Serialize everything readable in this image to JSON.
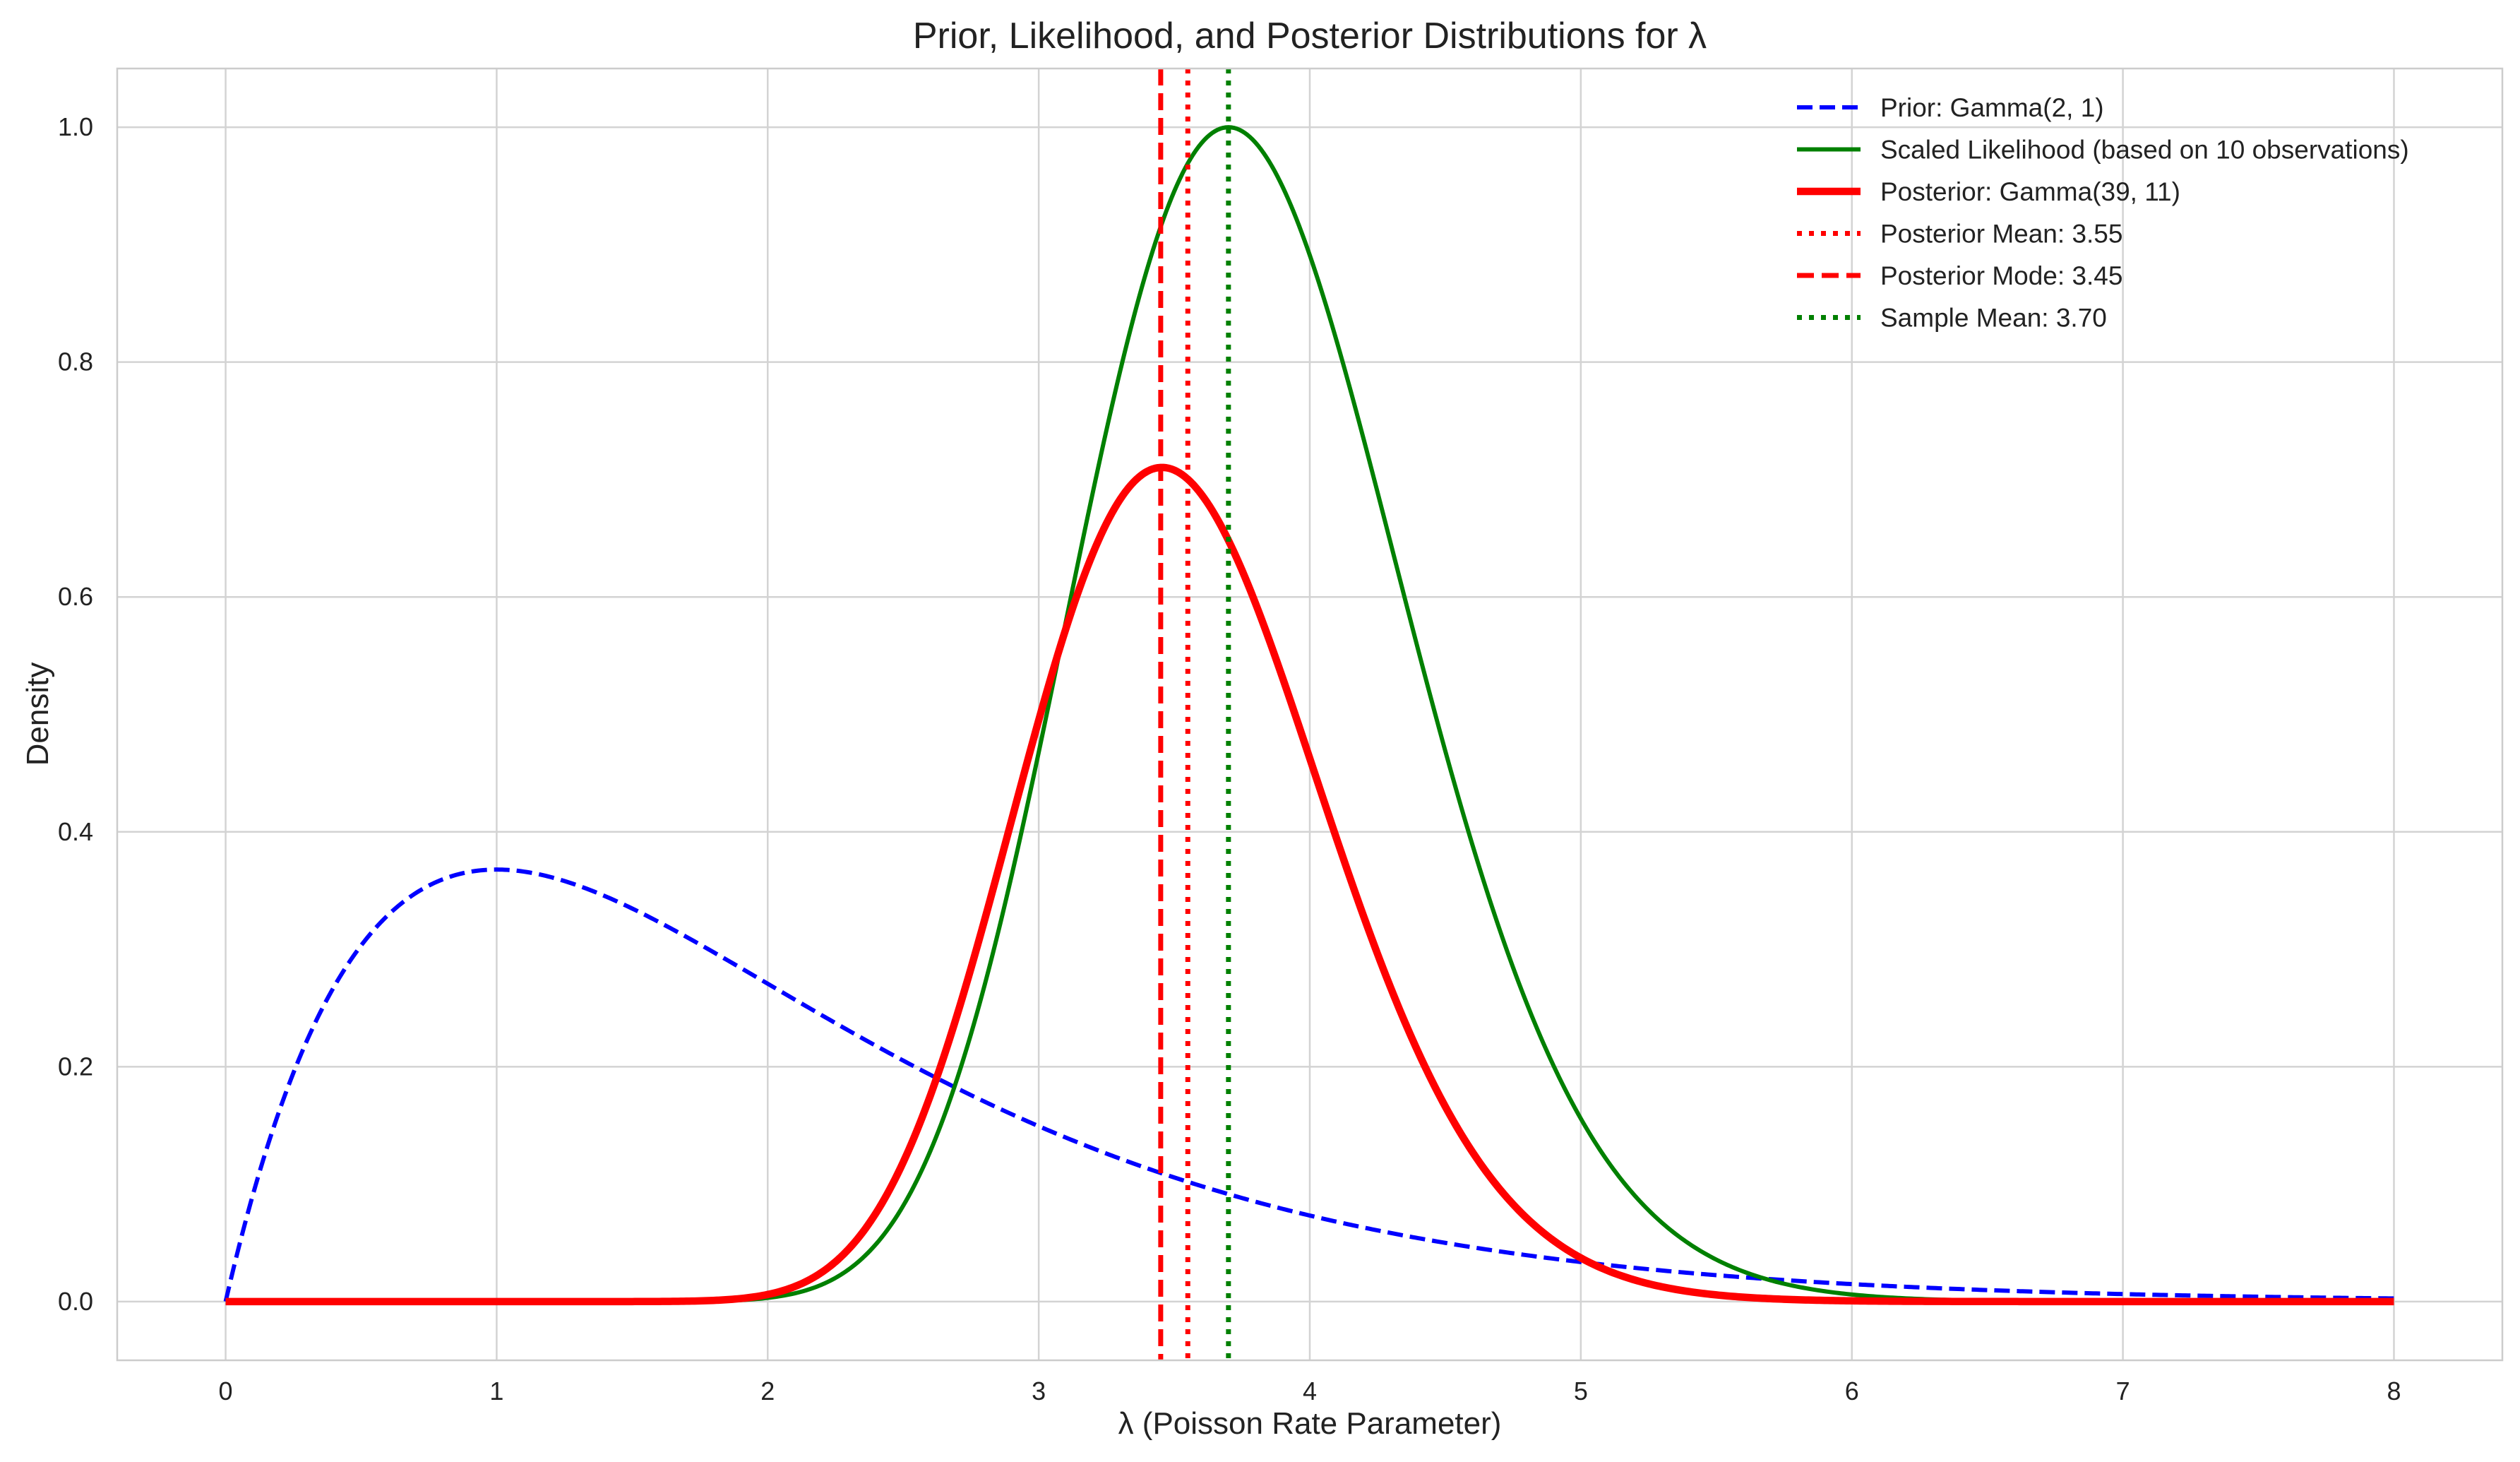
{
  "chart_data": {
    "type": "line",
    "title": "Prior, Likelihood, and Posterior Distributions for λ",
    "xlabel": "λ (Poisson Rate Parameter)",
    "ylabel": "Density",
    "xlim": [
      -0.4,
      8.4
    ],
    "ylim": [
      -0.05,
      1.05
    ],
    "x_ticks": [
      0,
      1,
      2,
      3,
      4,
      5,
      6,
      7,
      8
    ],
    "y_ticks": [
      0.0,
      0.2,
      0.4,
      0.6,
      0.8,
      1.0
    ],
    "x_tick_labels": [
      "0",
      "1",
      "2",
      "3",
      "4",
      "5",
      "6",
      "7",
      "8"
    ],
    "y_tick_labels": [
      "0.0",
      "0.2",
      "0.4",
      "0.6",
      "0.8",
      "1.0"
    ],
    "grid": true,
    "legend_position": "top-right",
    "x_range": [
      0,
      8
    ],
    "series": [
      {
        "name": "Prior: Gamma(2, 1)",
        "kind": "curve",
        "color": "#0000ff",
        "style": "dashed",
        "function": "gamma_pdf",
        "params": {
          "shape": 2,
          "rate": 1
        }
      },
      {
        "name": "Scaled Likelihood (based on 10 observations)",
        "kind": "curve",
        "color": "#008000",
        "style": "solid",
        "function": "scaled_poisson_likelihood",
        "params": {
          "n": 10,
          "sample_mean": 3.7
        }
      },
      {
        "name": "Posterior: Gamma(39, 11)",
        "kind": "curve",
        "color": "#ff0000",
        "style": "solid-thick",
        "function": "gamma_pdf",
        "params": {
          "shape": 39,
          "rate": 11
        }
      },
      {
        "name": "Posterior Mean: 3.55",
        "kind": "vline",
        "x": 3.55,
        "color": "#ff0000",
        "style": "dotted"
      },
      {
        "name": "Posterior Mode: 3.45",
        "kind": "vline",
        "x": 3.45,
        "color": "#ff0000",
        "style": "dashed"
      },
      {
        "name": "Sample Mean: 3.70",
        "kind": "vline",
        "x": 3.7,
        "color": "#008000",
        "style": "dotted"
      }
    ]
  }
}
